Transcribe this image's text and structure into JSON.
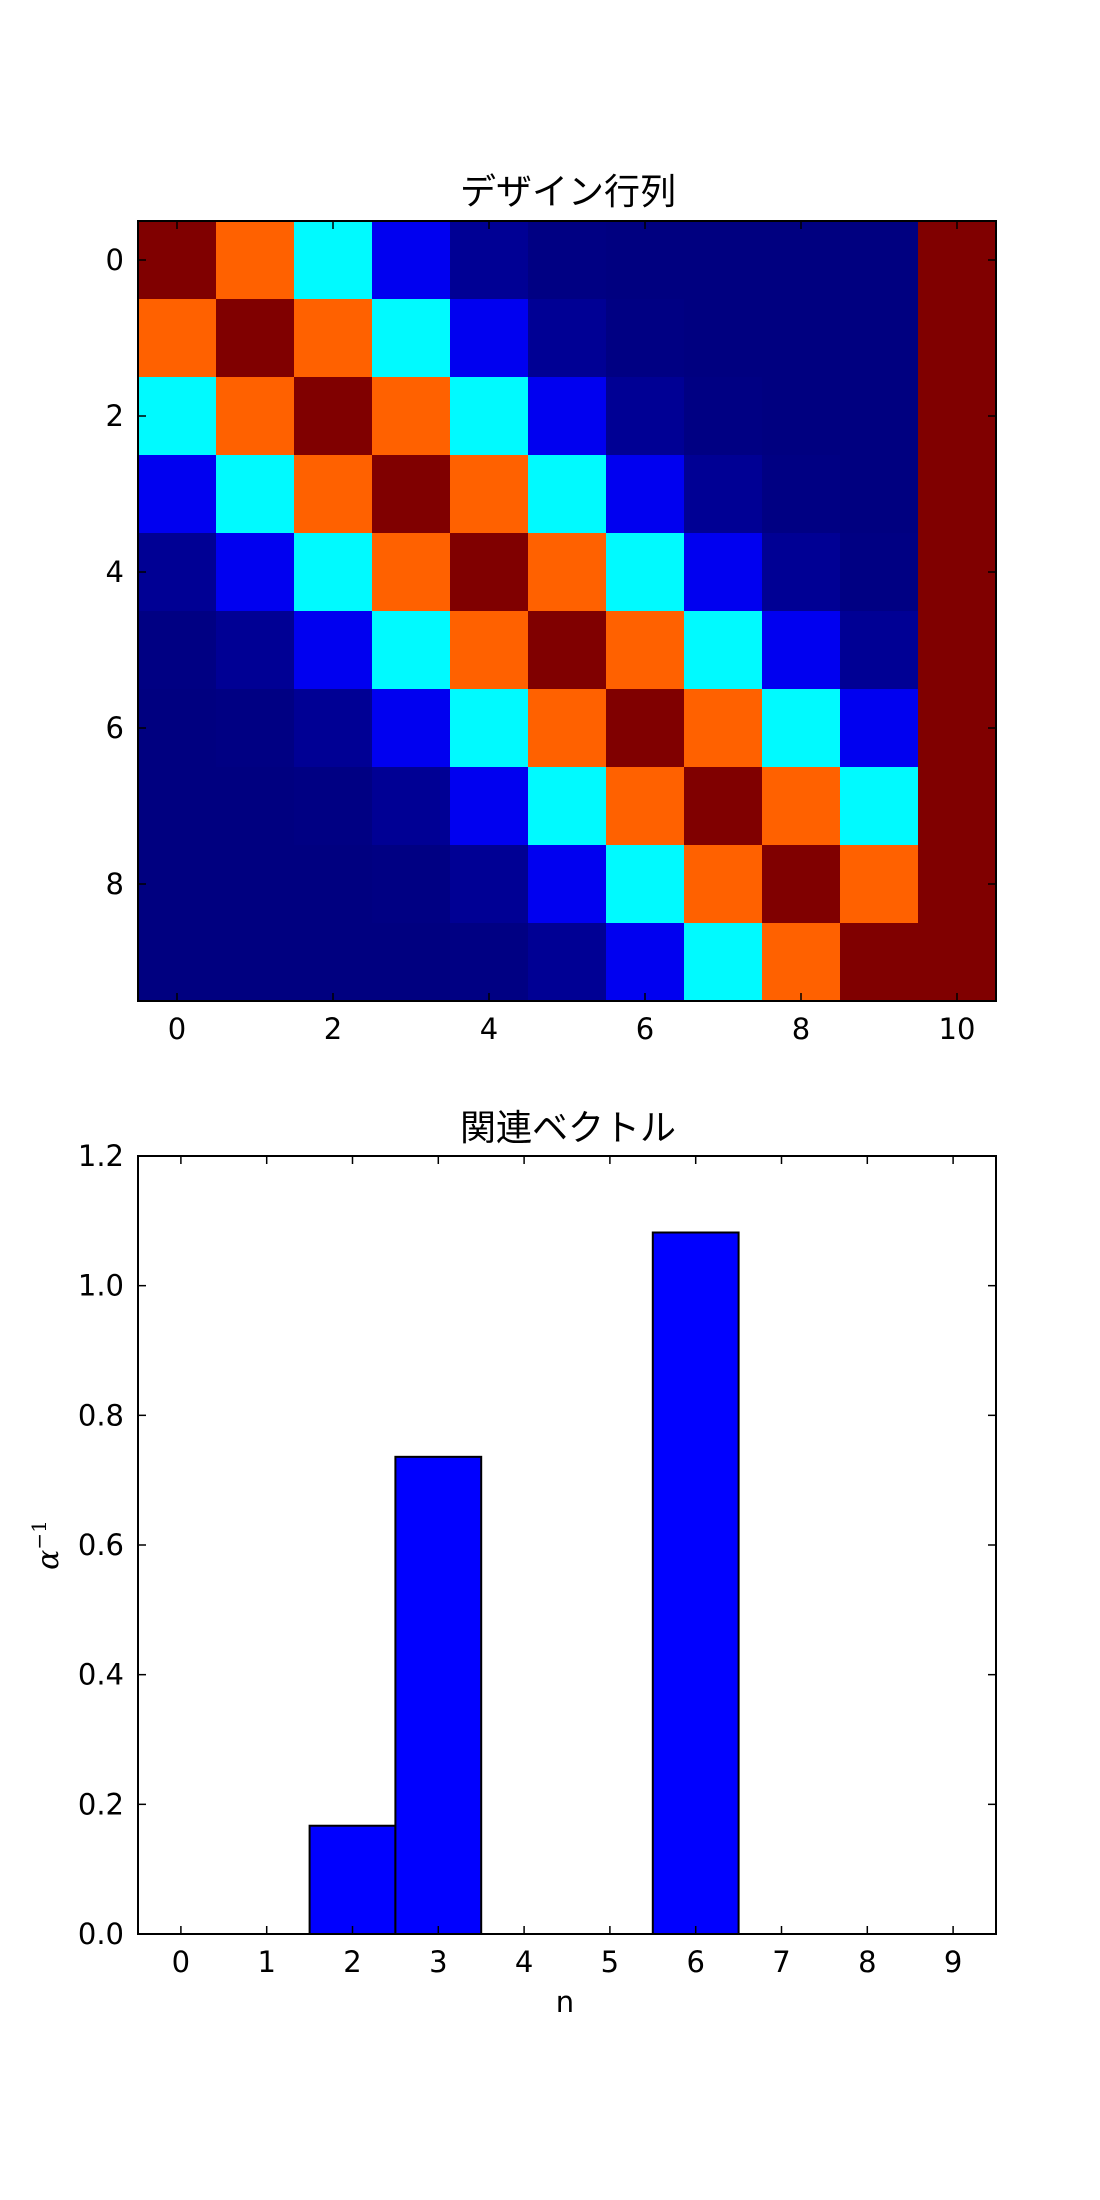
{
  "chart_data": [
    {
      "type": "heatmap",
      "title": "デザイン行列",
      "colormap": "jet",
      "x_ticks": [
        "0",
        "2",
        "4",
        "6",
        "8",
        "10"
      ],
      "y_ticks": [
        "0",
        "2",
        "4",
        "6",
        "8"
      ],
      "rows": 10,
      "cols": 11,
      "values": [
        [
          1.0,
          0.78,
          0.37,
          0.11,
          0.02,
          0.003,
          0.0,
          0.0,
          0.0,
          0.0,
          1.0
        ],
        [
          0.78,
          1.0,
          0.78,
          0.37,
          0.11,
          0.02,
          0.003,
          0.0,
          0.0,
          0.0,
          1.0
        ],
        [
          0.37,
          0.78,
          1.0,
          0.78,
          0.37,
          0.11,
          0.02,
          0.003,
          0.0,
          0.0,
          1.0
        ],
        [
          0.11,
          0.37,
          0.78,
          1.0,
          0.78,
          0.37,
          0.11,
          0.02,
          0.003,
          0.0,
          1.0
        ],
        [
          0.02,
          0.11,
          0.37,
          0.78,
          1.0,
          0.78,
          0.37,
          0.11,
          0.02,
          0.003,
          1.0
        ],
        [
          0.003,
          0.02,
          0.11,
          0.37,
          0.78,
          1.0,
          0.78,
          0.37,
          0.11,
          0.02,
          1.0
        ],
        [
          0.0,
          0.003,
          0.02,
          0.11,
          0.37,
          0.78,
          1.0,
          0.78,
          0.37,
          0.11,
          1.0
        ],
        [
          0.0,
          0.0,
          0.003,
          0.02,
          0.11,
          0.37,
          0.78,
          1.0,
          0.78,
          0.37,
          1.0
        ],
        [
          0.0,
          0.0,
          0.0,
          0.003,
          0.02,
          0.11,
          0.37,
          0.78,
          1.0,
          0.78,
          1.0
        ],
        [
          0.0,
          0.0,
          0.0,
          0.0,
          0.003,
          0.02,
          0.11,
          0.37,
          0.78,
          1.0,
          1.0
        ]
      ]
    },
    {
      "type": "bar",
      "title": "関連ベクトル",
      "xlabel": "n",
      "ylabel_base": "α",
      "ylabel_sup": "−1",
      "categories": [
        "0",
        "1",
        "2",
        "3",
        "4",
        "5",
        "6",
        "7",
        "8",
        "9"
      ],
      "values": [
        0,
        0,
        0.167,
        0.736,
        0,
        0,
        1.082,
        0,
        0,
        0
      ],
      "ylim": [
        0,
        1.2
      ],
      "y_ticks": [
        "0.0",
        "0.2",
        "0.4",
        "0.6",
        "0.8",
        "1.0",
        "1.2"
      ],
      "bar_color": "#0000ff"
    }
  ]
}
